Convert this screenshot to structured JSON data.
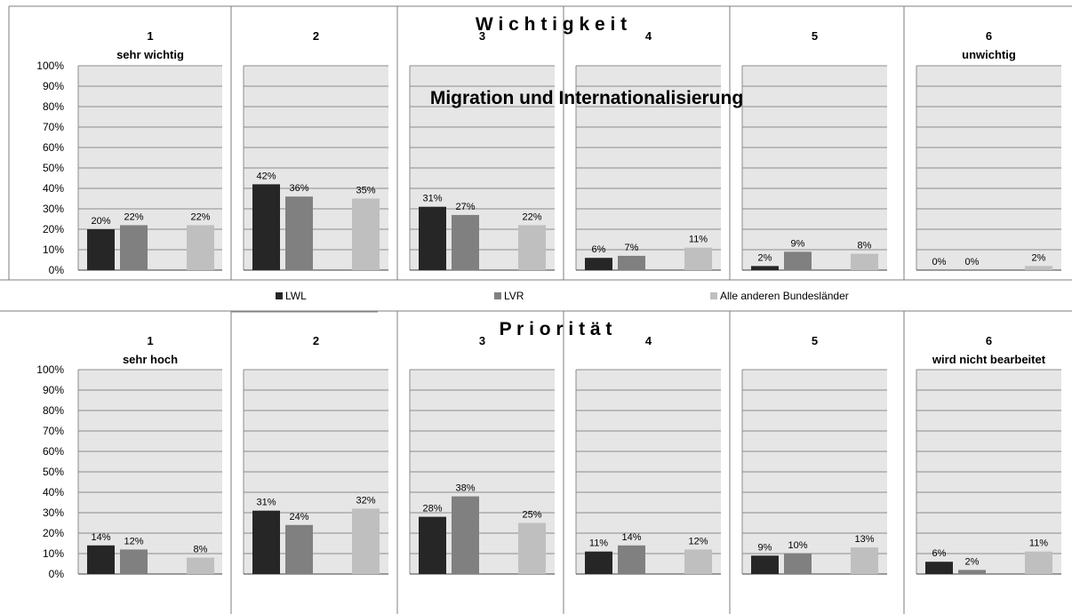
{
  "chart_data": {
    "type": "bar",
    "title": "Migration und Internationalisierung",
    "legend": {
      "position": "middle",
      "entries": [
        "LWL",
        "LVR",
        "Alle anderen Bundesländer"
      ]
    },
    "series_colors": {
      "LWL": "#262626",
      "LVR": "#808080",
      "Alle anderen Bundesländer": "#bfbfbf"
    },
    "plot_background": "#e6e6e6",
    "grid": true,
    "ylim": [
      0,
      100
    ],
    "y_ticks": [
      "100%",
      "90%",
      "80%",
      "70%",
      "60%",
      "50%",
      "40%",
      "30%",
      "20%",
      "10%",
      "0%"
    ],
    "blocks": [
      {
        "heading": "W i c h t i g k e i t",
        "panels": [
          {
            "number": "1",
            "label": "sehr wichtig",
            "values": [
              20,
              22,
              22
            ],
            "data_labels": [
              "20%",
              "22%",
              "22%"
            ]
          },
          {
            "number": "2",
            "label": "",
            "values": [
              42,
              36,
              35
            ],
            "data_labels": [
              "42%",
              "36%",
              "35%"
            ]
          },
          {
            "number": "3",
            "label": "",
            "values": [
              31,
              27,
              22
            ],
            "data_labels": [
              "31%",
              "27%",
              "22%"
            ]
          },
          {
            "number": "4",
            "label": "",
            "values": [
              6,
              7,
              11
            ],
            "data_labels": [
              "6%",
              "7%",
              "11%"
            ]
          },
          {
            "number": "5",
            "label": "",
            "values": [
              2,
              9,
              8
            ],
            "data_labels": [
              "2%",
              "9%",
              "8%"
            ]
          },
          {
            "number": "6",
            "label": "unwichtig",
            "values": [
              0,
              0,
              2
            ],
            "data_labels": [
              "0%",
              "0%",
              "2%"
            ]
          }
        ]
      },
      {
        "heading": "P r i o r i t ä t",
        "panels": [
          {
            "number": "1",
            "label": "sehr hoch",
            "values": [
              14,
              12,
              8
            ],
            "data_labels": [
              "14%",
              "12%",
              "8%"
            ]
          },
          {
            "number": "2",
            "label": "",
            "values": [
              31,
              24,
              32
            ],
            "data_labels": [
              "31%",
              "24%",
              "32%"
            ]
          },
          {
            "number": "3",
            "label": "",
            "values": [
              28,
              38,
              25
            ],
            "data_labels": [
              "28%",
              "38%",
              "25%"
            ]
          },
          {
            "number": "4",
            "label": "",
            "values": [
              11,
              14,
              12
            ],
            "data_labels": [
              "11%",
              "14%",
              "12%"
            ]
          },
          {
            "number": "5",
            "label": "",
            "values": [
              9,
              10,
              13
            ],
            "data_labels": [
              "9%",
              "10%",
              "13%"
            ]
          },
          {
            "number": "6",
            "label": "wird nicht bearbeitet",
            "values": [
              6,
              2,
              11
            ],
            "data_labels": [
              "6%",
              "2%",
              "11%"
            ]
          }
        ]
      }
    ]
  }
}
